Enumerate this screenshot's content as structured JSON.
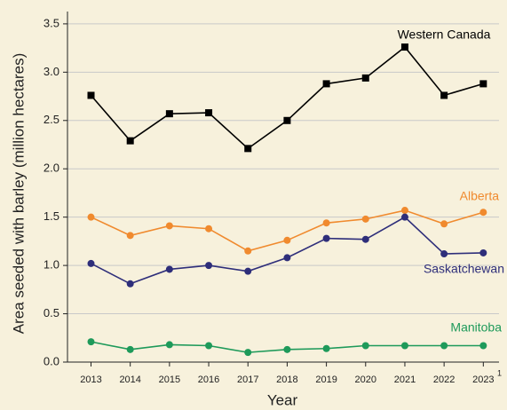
{
  "chart_data": {
    "type": "line",
    "x_label": "Year",
    "y_label": "Area seeded with barley (million hectares)",
    "x": [
      2013,
      2014,
      2015,
      2016,
      2017,
      2018,
      2019,
      2020,
      2021,
      2022,
      2023
    ],
    "xlim": [
      2012.4,
      2023.4
    ],
    "xticks": [
      2013,
      2014,
      2015,
      2016,
      2017,
      2018,
      2019,
      2020,
      2021,
      2022,
      2023
    ],
    "x_tick_footnote": "1",
    "ylim": [
      0,
      3.6
    ],
    "yticks": [
      {
        "value": 0,
        "label": "0.0"
      },
      0.5,
      {
        "value": 1,
        "label": "1.0"
      },
      1.5,
      {
        "value": 2,
        "label": "2.0"
      },
      2.5,
      {
        "value": 3,
        "label": "3.0"
      },
      3.5
    ],
    "grid": true,
    "series": [
      {
        "name": "Western Canada",
        "color": "#000000",
        "marker": "square",
        "values": [
          2.76,
          2.29,
          2.57,
          2.58,
          2.21,
          2.5,
          2.88,
          2.94,
          3.26,
          2.76,
          2.88
        ]
      },
      {
        "name": "Alberta",
        "color": "#f08a2e",
        "marker": "circle",
        "values": [
          1.5,
          1.31,
          1.41,
          1.38,
          1.15,
          1.26,
          1.44,
          1.48,
          1.57,
          1.43,
          1.55
        ]
      },
      {
        "name": "Saskatchewan",
        "color": "#2e2e7a",
        "marker": "circle",
        "values": [
          1.02,
          0.81,
          0.96,
          1.0,
          0.94,
          1.08,
          1.28,
          1.27,
          1.5,
          1.12,
          1.13
        ]
      },
      {
        "name": "Manitoba",
        "color": "#1e9a5a",
        "marker": "circle",
        "values": [
          0.21,
          0.13,
          0.18,
          0.17,
          0.1,
          0.13,
          0.14,
          0.17,
          0.17,
          0.17,
          0.17
        ]
      }
    ]
  }
}
